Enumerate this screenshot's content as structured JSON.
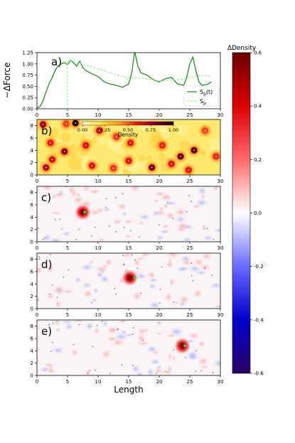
{
  "chart_data": [
    {
      "type": "line",
      "panel_label": "a)",
      "ylabel": "−ΔForce",
      "xlim": [
        0,
        30
      ],
      "ylim": [
        0,
        1.25
      ],
      "xticks": [
        0,
        5,
        10,
        15,
        20,
        25,
        30
      ],
      "yticks": [
        0.0,
        0.25,
        0.5,
        0.75,
        1.0,
        1.25
      ],
      "legend": {
        "placement": "lower-right"
      },
      "series": [
        {
          "name": "S_p(t)",
          "label_main": "S",
          "label_sub": "p",
          "label_suffix": "(t)",
          "color": "#228b22",
          "style": "solid",
          "x": [
            0,
            0.5,
            1,
            1.5,
            2,
            2.5,
            3,
            3.5,
            4,
            4.5,
            5,
            5.5,
            6,
            6.5,
            7,
            7.5,
            8,
            9,
            10,
            11,
            12,
            13,
            14,
            15,
            15.5,
            16,
            16.5,
            17,
            18,
            19,
            20,
            21,
            22,
            23,
            24,
            24.5,
            25,
            25.5,
            26,
            26.5,
            27,
            28,
            28.5
          ],
          "y": [
            0.02,
            0.05,
            0.18,
            0.38,
            0.56,
            0.7,
            0.86,
            0.96,
            1.0,
            1.03,
            0.98,
            1.08,
            1.02,
            0.95,
            1.06,
            0.92,
            0.85,
            0.78,
            0.72,
            0.6,
            0.55,
            0.52,
            0.48,
            0.55,
            0.8,
            1.28,
            0.95,
            0.8,
            0.75,
            0.65,
            0.6,
            0.67,
            0.7,
            0.55,
            0.52,
            0.7,
            1.0,
            1.15,
            0.85,
            0.6,
            0.52,
            0.55,
            0.6
          ]
        },
        {
          "name": "S_p",
          "label_main": "S",
          "label_sub": "p",
          "label_suffix": "",
          "color": "#90ee90",
          "style": "dashed",
          "x": [
            5,
            5,
            5.5,
            6,
            7,
            8,
            9,
            10,
            11,
            12,
            13,
            14,
            15,
            16,
            17,
            18,
            19,
            20,
            21,
            22,
            23,
            24,
            25,
            26,
            27,
            28,
            28.5
          ],
          "y": [
            0.0,
            1.05,
            1.06,
            1.08,
            1.02,
            0.98,
            0.93,
            0.89,
            0.85,
            0.8,
            0.76,
            0.72,
            0.69,
            0.69,
            0.68,
            0.66,
            0.64,
            0.62,
            0.63,
            0.64,
            0.65,
            0.66,
            0.7,
            0.73,
            0.74,
            0.73,
            0.72
          ]
        }
      ]
    },
    {
      "type": "heatmap",
      "panel_label": "b)",
      "xlim": [
        0,
        30
      ],
      "ylim": [
        0,
        9
      ],
      "xticks": [
        0,
        5,
        10,
        15,
        20,
        25,
        30
      ],
      "yticks": [
        0,
        2,
        4,
        6,
        8
      ],
      "colorbar": {
        "label": "Density",
        "ticks": [
          "0.00",
          "0.25",
          "0.50",
          "0.75",
          "1.00"
        ],
        "placement": "top-inset"
      },
      "colormap": [
        "#ffffcc",
        "#ffe24a",
        "#fd9a1f",
        "#e31a1c",
        "#800026",
        "#1a0000"
      ],
      "blobs": [
        {
          "x": 1.0,
          "y": 8.2,
          "density": 0.75
        },
        {
          "x": 4.8,
          "y": 8.3,
          "density": 0.55
        },
        {
          "x": 6.3,
          "y": 8.4,
          "density": 1.0
        },
        {
          "x": 2.2,
          "y": 5.2,
          "density": 0.6
        },
        {
          "x": 4.5,
          "y": 3.8,
          "density": 0.78
        },
        {
          "x": 1.5,
          "y": 1.2,
          "density": 0.72
        },
        {
          "x": 2.5,
          "y": 2.5,
          "density": 0.65
        },
        {
          "x": 8.0,
          "y": 4.8,
          "density": 0.62
        },
        {
          "x": 10.2,
          "y": 7.2,
          "density": 0.68
        },
        {
          "x": 12.5,
          "y": 1.1,
          "density": 0.55
        },
        {
          "x": 15.3,
          "y": 5.2,
          "density": 0.6
        },
        {
          "x": 15.0,
          "y": 2.3,
          "density": 0.62
        },
        {
          "x": 18.8,
          "y": 1.2,
          "density": 0.82
        },
        {
          "x": 20.5,
          "y": 4.8,
          "density": 0.58
        },
        {
          "x": 22.0,
          "y": 1.8,
          "density": 0.62
        },
        {
          "x": 23.5,
          "y": 3.0,
          "density": 0.85
        },
        {
          "x": 25.7,
          "y": 4.0,
          "density": 0.88
        },
        {
          "x": 24.8,
          "y": 0.8,
          "density": 0.6
        },
        {
          "x": 27.5,
          "y": 7.2,
          "density": 0.52
        },
        {
          "x": 29.3,
          "y": 3.0,
          "density": 0.58
        },
        {
          "x": 13.0,
          "y": 6.2,
          "density": 0.55
        },
        {
          "x": 9.0,
          "y": 1.5,
          "density": 0.62
        }
      ]
    },
    {
      "type": "heatmap",
      "panel_label": "c)",
      "xlim": [
        0,
        30
      ],
      "ylim": [
        0,
        9
      ],
      "xticks": [
        0,
        5,
        10,
        15,
        20,
        25,
        30
      ],
      "yticks": [
        0,
        2,
        4,
        6,
        8
      ],
      "hotspot": {
        "x": 7.5,
        "y": 4.8,
        "value": 0.55
      },
      "marker": {
        "x": 7.8,
        "y": 4.8,
        "color": "#32cd32"
      }
    },
    {
      "type": "heatmap",
      "panel_label": "d)",
      "xlim": [
        0,
        30
      ],
      "ylim": [
        0,
        9
      ],
      "xticks": [
        0,
        5,
        10,
        15,
        20,
        25,
        30
      ],
      "yticks": [
        0,
        2,
        4,
        6,
        8
      ],
      "hotspot": {
        "x": 15.2,
        "y": 5.0,
        "value": 0.55
      },
      "marker": {
        "x": 16.0,
        "y": 5.0,
        "color": "#32cd32"
      }
    },
    {
      "type": "heatmap",
      "panel_label": "e)",
      "xlim": [
        0,
        30
      ],
      "ylim": [
        0,
        9
      ],
      "xticks": [
        0,
        5,
        10,
        15,
        20,
        25,
        30
      ],
      "yticks": [
        0,
        2,
        4,
        6,
        8
      ],
      "xlabel": "Length",
      "hotspot": {
        "x": 23.8,
        "y": 4.8,
        "value": 0.55
      },
      "marker": {
        "x": 24.2,
        "y": 4.8,
        "color": "#32cd32"
      }
    }
  ],
  "colorbar": {
    "label": "ΔDensity",
    "ticks": [
      {
        "value": 0.6,
        "label": "0.6"
      },
      {
        "value": 0.4,
        "label": "0.4"
      },
      {
        "value": 0.2,
        "label": "0.2"
      },
      {
        "value": 0.0,
        "label": "0.0"
      },
      {
        "value": -0.2,
        "label": "-0.2"
      },
      {
        "value": -0.4,
        "label": "-0.4"
      },
      {
        "value": -0.6,
        "label": "-0.6"
      }
    ],
    "range": [
      -0.6,
      0.6
    ],
    "colormap": [
      "#2a0064",
      "#0000cc",
      "#6a6aff",
      "#ffffff",
      "#ff6a6a",
      "#dd0000",
      "#6a0000"
    ]
  }
}
